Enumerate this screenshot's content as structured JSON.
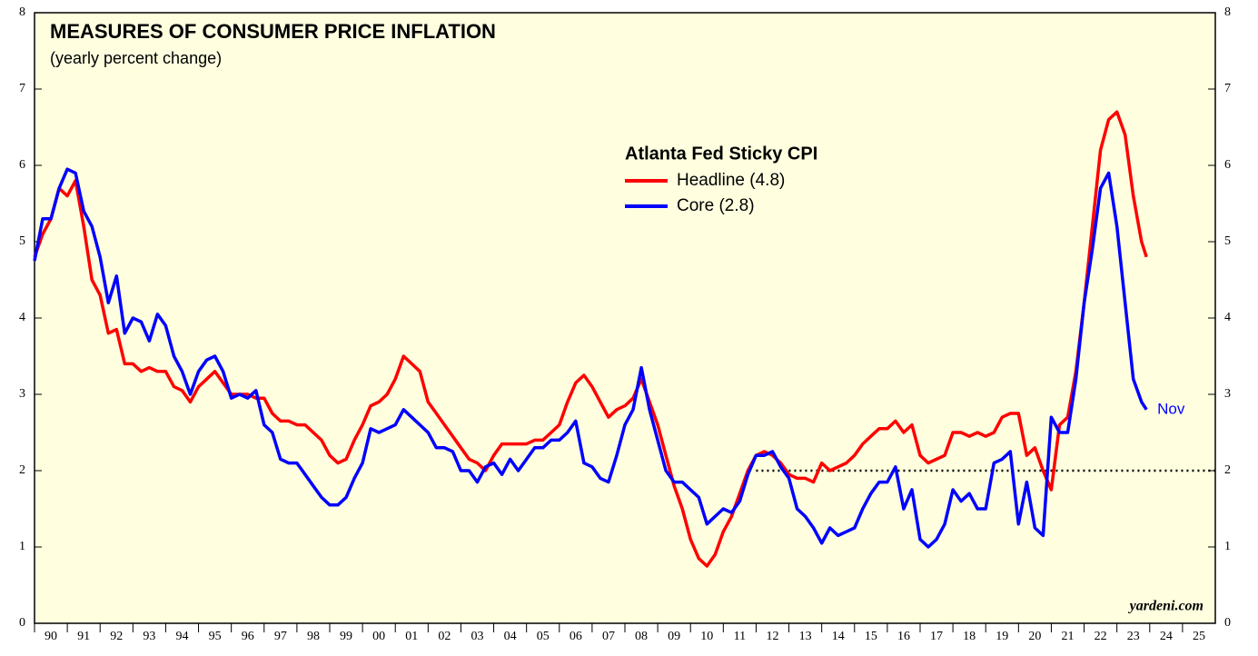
{
  "chart_data": {
    "type": "line",
    "title": "MEASURES OF CONSUMER PRICE INFLATION",
    "subtitle": "(yearly percent change)",
    "legend_title": "Atlanta Fed Sticky CPI",
    "annotation": "Nov",
    "source": "yardeni.com",
    "reference_line": {
      "value": 2,
      "x_start": 2012
    },
    "x": [
      1990,
      1990.25,
      1990.5,
      1990.75,
      1991,
      1991.25,
      1991.5,
      1991.75,
      1992,
      1992.25,
      1992.5,
      1992.75,
      1993,
      1993.25,
      1993.5,
      1993.75,
      1994,
      1994.25,
      1994.5,
      1994.75,
      1995,
      1995.25,
      1995.5,
      1995.75,
      1996,
      1996.25,
      1996.5,
      1996.75,
      1997,
      1997.25,
      1997.5,
      1997.75,
      1998,
      1998.25,
      1998.5,
      1998.75,
      1999,
      1999.25,
      1999.5,
      1999.75,
      2000,
      2000.25,
      2000.5,
      2000.75,
      2001,
      2001.25,
      2001.5,
      2001.75,
      2002,
      2002.25,
      2002.5,
      2002.75,
      2003,
      2003.25,
      2003.5,
      2003.75,
      2004,
      2004.25,
      2004.5,
      2004.75,
      2005,
      2005.25,
      2005.5,
      2005.75,
      2006,
      2006.25,
      2006.5,
      2006.75,
      2007,
      2007.25,
      2007.5,
      2007.75,
      2008,
      2008.25,
      2008.5,
      2008.75,
      2009,
      2009.25,
      2009.5,
      2009.75,
      2010,
      2010.25,
      2010.5,
      2010.75,
      2011,
      2011.25,
      2011.5,
      2011.75,
      2012,
      2012.25,
      2012.5,
      2012.75,
      2013,
      2013.25,
      2013.5,
      2013.75,
      2014,
      2014.25,
      2014.5,
      2014.75,
      2015,
      2015.25,
      2015.5,
      2015.75,
      2016,
      2016.25,
      2016.5,
      2016.75,
      2017,
      2017.25,
      2017.5,
      2017.75,
      2018,
      2018.25,
      2018.5,
      2018.75,
      2019,
      2019.25,
      2019.5,
      2019.75,
      2020,
      2020.25,
      2020.5,
      2020.75,
      2021,
      2021.25,
      2021.5,
      2021.75,
      2022,
      2022.25,
      2022.5,
      2022.75,
      2023,
      2023.25,
      2023.5,
      2023.75,
      2023.9
    ],
    "series": [
      {
        "name": "Headline (4.8)",
        "color": "#ff0000",
        "values": [
          4.8,
          5.1,
          5.3,
          5.7,
          5.6,
          5.8,
          5.2,
          4.5,
          4.3,
          3.8,
          3.85,
          3.4,
          3.4,
          3.3,
          3.35,
          3.3,
          3.3,
          3.1,
          3.05,
          2.9,
          3.1,
          3.2,
          3.3,
          3.15,
          3.0,
          3.0,
          3.0,
          2.95,
          2.95,
          2.75,
          2.65,
          2.65,
          2.6,
          2.6,
          2.5,
          2.4,
          2.2,
          2.1,
          2.15,
          2.4,
          2.6,
          2.85,
          2.9,
          3.0,
          3.2,
          3.5,
          3.4,
          3.3,
          2.9,
          2.75,
          2.6,
          2.45,
          2.3,
          2.15,
          2.1,
          2.0,
          2.2,
          2.35,
          2.35,
          2.35,
          2.35,
          2.4,
          2.4,
          2.5,
          2.6,
          2.9,
          3.15,
          3.25,
          3.1,
          2.9,
          2.7,
          2.8,
          2.85,
          2.95,
          3.2,
          2.9,
          2.6,
          2.2,
          1.8,
          1.5,
          1.1,
          0.85,
          0.75,
          0.9,
          1.2,
          1.4,
          1.7,
          2.0,
          2.2,
          2.25,
          2.2,
          2.1,
          1.95,
          1.9,
          1.9,
          1.85,
          2.1,
          2.0,
          2.05,
          2.1,
          2.2,
          2.35,
          2.45,
          2.55,
          2.55,
          2.65,
          2.5,
          2.6,
          2.2,
          2.1,
          2.15,
          2.2,
          2.5,
          2.5,
          2.45,
          2.5,
          2.45,
          2.5,
          2.7,
          2.75,
          2.75,
          2.2,
          2.3,
          2.0,
          1.75,
          2.6,
          2.7,
          3.3,
          4.2,
          5.2,
          6.2,
          6.6,
          6.7,
          6.4,
          5.6,
          5.0,
          4.8
        ]
      },
      {
        "name": "Core (2.8)",
        "color": "#0000ff",
        "values": [
          4.75,
          5.3,
          5.3,
          5.7,
          5.95,
          5.9,
          5.4,
          5.2,
          4.8,
          4.2,
          4.55,
          3.8,
          4.0,
          3.95,
          3.7,
          4.05,
          3.9,
          3.5,
          3.3,
          3.0,
          3.3,
          3.45,
          3.5,
          3.3,
          2.95,
          3.0,
          2.95,
          3.05,
          2.6,
          2.5,
          2.15,
          2.1,
          2.1,
          1.95,
          1.8,
          1.65,
          1.55,
          1.55,
          1.65,
          1.9,
          2.1,
          2.55,
          2.5,
          2.55,
          2.6,
          2.8,
          2.7,
          2.6,
          2.5,
          2.3,
          2.3,
          2.25,
          2.0,
          2.0,
          1.85,
          2.05,
          2.1,
          1.95,
          2.15,
          2.0,
          2.15,
          2.3,
          2.3,
          2.4,
          2.4,
          2.5,
          2.65,
          2.1,
          2.05,
          1.9,
          1.85,
          2.2,
          2.6,
          2.8,
          3.35,
          2.8,
          2.4,
          2.0,
          1.85,
          1.85,
          1.75,
          1.65,
          1.3,
          1.4,
          1.5,
          1.45,
          1.6,
          1.95,
          2.2,
          2.2,
          2.25,
          2.05,
          1.9,
          1.5,
          1.4,
          1.25,
          1.05,
          1.25,
          1.15,
          1.2,
          1.25,
          1.5,
          1.7,
          1.85,
          1.85,
          2.05,
          1.5,
          1.75,
          1.1,
          1.0,
          1.1,
          1.3,
          1.75,
          1.6,
          1.7,
          1.5,
          1.5,
          2.1,
          2.15,
          2.25,
          1.3,
          1.85,
          1.25,
          1.15,
          2.7,
          2.5,
          2.5,
          3.2,
          4.2,
          4.9,
          5.7,
          5.9,
          5.2,
          4.2,
          3.2,
          2.9,
          2.8
        ]
      }
    ],
    "xlim": [
      1990,
      2026
    ],
    "xticks": [
      {
        "value": 1990,
        "label": "90"
      },
      {
        "value": 1991,
        "label": "91"
      },
      {
        "value": 1992,
        "label": "92"
      },
      {
        "value": 1993,
        "label": "93"
      },
      {
        "value": 1994,
        "label": "94"
      },
      {
        "value": 1995,
        "label": "95"
      },
      {
        "value": 1996,
        "label": "96"
      },
      {
        "value": 1997,
        "label": "97"
      },
      {
        "value": 1998,
        "label": "98"
      },
      {
        "value": 1999,
        "label": "99"
      },
      {
        "value": 2000,
        "label": "00"
      },
      {
        "value": 2001,
        "label": "01"
      },
      {
        "value": 2002,
        "label": "02"
      },
      {
        "value": 2003,
        "label": "03"
      },
      {
        "value": 2004,
        "label": "04"
      },
      {
        "value": 2005,
        "label": "05"
      },
      {
        "value": 2006,
        "label": "06"
      },
      {
        "value": 2007,
        "label": "07"
      },
      {
        "value": 2008,
        "label": "08"
      },
      {
        "value": 2009,
        "label": "09"
      },
      {
        "value": 2010,
        "label": "10"
      },
      {
        "value": 2011,
        "label": "11"
      },
      {
        "value": 2012,
        "label": "12"
      },
      {
        "value": 2013,
        "label": "13"
      },
      {
        "value": 2014,
        "label": "14"
      },
      {
        "value": 2015,
        "label": "15"
      },
      {
        "value": 2016,
        "label": "16"
      },
      {
        "value": 2017,
        "label": "17"
      },
      {
        "value": 2018,
        "label": "18"
      },
      {
        "value": 2019,
        "label": "19"
      },
      {
        "value": 2020,
        "label": "20"
      },
      {
        "value": 2021,
        "label": "21"
      },
      {
        "value": 2022,
        "label": "22"
      },
      {
        "value": 2023,
        "label": "23"
      },
      {
        "value": 2024,
        "label": "24"
      },
      {
        "value": 2025,
        "label": "25"
      }
    ],
    "ylim": [
      0,
      8
    ],
    "yticks": [
      0,
      1,
      2,
      3,
      4,
      5,
      6,
      7,
      8
    ],
    "grid": false
  }
}
